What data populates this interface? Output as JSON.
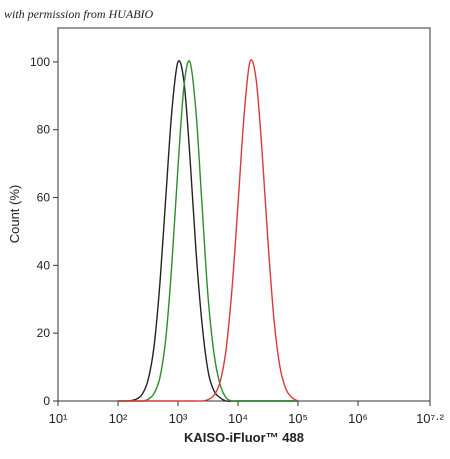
{
  "chart_data": {
    "type": "line",
    "watermark": "with permission from HUABIO",
    "xlabel": "KAISO-iFluor™ 488",
    "ylabel": "Count  (%)",
    "xscale": "log",
    "xlim": [
      10,
      15848931.92
    ],
    "xticks": [
      {
        "value": 10,
        "label": "10¹"
      },
      {
        "value": 100,
        "label": "10²"
      },
      {
        "value": 1000,
        "label": "10³"
      },
      {
        "value": 10000,
        "label": "10⁴"
      },
      {
        "value": 100000,
        "label": "10⁵"
      },
      {
        "value": 1000000,
        "label": "10⁶"
      },
      {
        "value": 15848931.92,
        "label": "10⁷·²"
      }
    ],
    "ylim": [
      0,
      110
    ],
    "yticks": [
      0,
      20,
      40,
      60,
      80,
      100
    ],
    "x": [
      100,
      126,
      158,
      200,
      251,
      316,
      398,
      501,
      631,
      794,
      1000,
      1260,
      1580,
      2000,
      2510,
      3160,
      3980,
      5010,
      6310,
      7940,
      10000,
      12600,
      15800,
      20000,
      25100,
      31600,
      39800,
      50100,
      63100,
      79400,
      100000
    ],
    "series": [
      {
        "color": "#222222",
        "values": [
          0,
          0,
          0.1,
          0.5,
          1.9,
          6.1,
          16,
          35,
          61,
          86,
          100,
          94,
          72,
          44,
          23,
          9,
          3,
          1,
          0,
          0,
          0,
          0,
          0,
          0,
          0,
          0,
          0,
          0,
          0,
          0,
          0
        ]
      },
      {
        "color": "#2e8b2e",
        "values": [
          0,
          0,
          0,
          0,
          0,
          0.5,
          2.2,
          7,
          19,
          41,
          69,
          93,
          100,
          85,
          58,
          31,
          14,
          5,
          1,
          0,
          0,
          0,
          0,
          0,
          0,
          0,
          0,
          0,
          0,
          0,
          0
        ]
      },
      {
        "color": "#d93a3a",
        "values": [
          0,
          0,
          0,
          0,
          0,
          0,
          0,
          0,
          0,
          0,
          0,
          0,
          0,
          0,
          0,
          0.4,
          1.7,
          5.5,
          15,
          33,
          58,
          84,
          100,
          95,
          74,
          47,
          24,
          10,
          3.5,
          1,
          0
        ]
      }
    ]
  }
}
